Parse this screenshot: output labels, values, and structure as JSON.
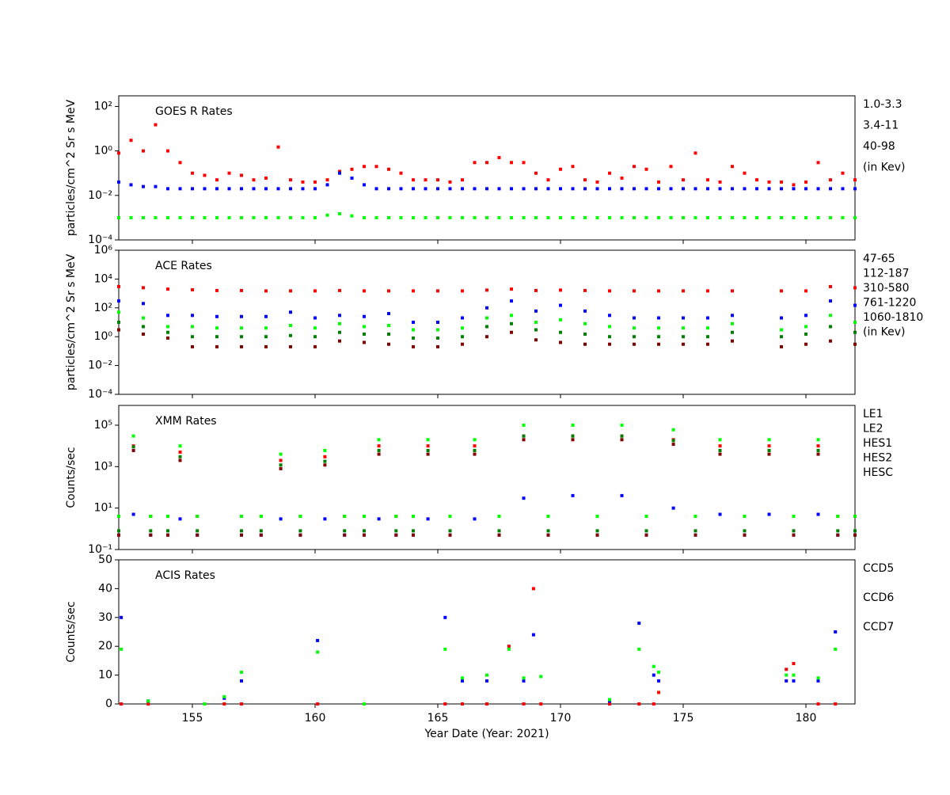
{
  "chart_data": [
    {
      "type": "scatter",
      "title": "GOES R Rates",
      "y_label": "particles/cm^2 Sr s MeV",
      "log_y": true,
      "ylim": [
        0.0001,
        300
      ],
      "xlim": [
        152,
        182
      ],
      "yticks": [
        {
          "value": 0.0001,
          "label": "10⁻⁴"
        },
        {
          "value": 0.01,
          "label": "10⁻²"
        },
        {
          "value": 1,
          "label": "10⁰"
        },
        {
          "value": 100,
          "label": "10²"
        }
      ],
      "legend_note": "(in Kev)",
      "x": [
        152,
        152.5,
        153,
        153.5,
        154,
        154.5,
        155,
        155.5,
        156,
        156.5,
        157,
        157.5,
        158,
        158.5,
        159,
        159.5,
        160,
        160.5,
        161,
        161.5,
        162,
        162.5,
        163,
        163.5,
        164,
        164.5,
        165,
        165.5,
        166,
        166.5,
        167,
        167.5,
        168,
        168.5,
        169,
        169.5,
        170,
        170.5,
        171,
        171.5,
        172,
        172.5,
        173,
        173.5,
        174,
        174.5,
        175,
        175.5,
        176,
        176.5,
        177,
        177.5,
        178,
        178.5,
        179,
        179.5,
        180,
        180.5,
        181,
        181.5,
        182
      ],
      "series": [
        {
          "name": "1.0-3.3",
          "color": "#ff0000",
          "values": [
            0.8,
            3,
            1,
            15,
            1,
            0.3,
            0.1,
            0.08,
            0.05,
            0.1,
            0.08,
            0.05,
            0.06,
            1.5,
            0.05,
            0.04,
            0.04,
            0.05,
            0.12,
            0.15,
            0.2,
            0.2,
            0.15,
            0.1,
            0.05,
            0.05,
            0.05,
            0.04,
            0.05,
            0.3,
            0.3,
            0.5,
            0.3,
            0.3,
            0.1,
            0.05,
            0.15,
            0.2,
            0.05,
            0.04,
            0.1,
            0.06,
            0.2,
            0.15,
            0.04,
            0.2,
            0.05,
            0.8,
            0.05,
            0.04,
            0.2,
            0.1,
            0.05,
            0.04,
            0.04,
            0.03,
            0.04,
            0.3,
            0.05,
            0.1,
            0.05
          ]
        },
        {
          "name": "3.4-11",
          "color": "#0000ff",
          "values": [
            0.04,
            0.03,
            0.025,
            0.025,
            0.02,
            0.02,
            0.02,
            0.02,
            0.02,
            0.02,
            0.02,
            0.02,
            0.02,
            0.02,
            0.02,
            0.02,
            0.02,
            0.03,
            0.1,
            0.06,
            0.03,
            0.02,
            0.02,
            0.02,
            0.02,
            0.02,
            0.02,
            0.02,
            0.02,
            0.02,
            0.02,
            0.02,
            0.02,
            0.02,
            0.02,
            0.02,
            0.02,
            0.02,
            0.02,
            0.02,
            0.02,
            0.02,
            0.02,
            0.02,
            0.02,
            0.02,
            0.02,
            0.02,
            0.02,
            0.02,
            0.02,
            0.02,
            0.02,
            0.02,
            0.02,
            0.02,
            0.02,
            0.02,
            0.02,
            0.02,
            0.02
          ]
        },
        {
          "name": "40-98",
          "color": "#00ff00",
          "values": [
            0.001,
            0.001,
            0.001,
            0.001,
            0.001,
            0.001,
            0.001,
            0.001,
            0.001,
            0.001,
            0.001,
            0.001,
            0.001,
            0.001,
            0.001,
            0.001,
            0.001,
            0.0013,
            0.0015,
            0.0012,
            0.001,
            0.001,
            0.001,
            0.001,
            0.001,
            0.001,
            0.001,
            0.001,
            0.001,
            0.001,
            0.001,
            0.001,
            0.001,
            0.001,
            0.001,
            0.001,
            0.001,
            0.001,
            0.001,
            0.001,
            0.001,
            0.001,
            0.001,
            0.001,
            0.001,
            0.001,
            0.001,
            0.001,
            0.001,
            0.001,
            0.001,
            0.001,
            0.001,
            0.001,
            0.001,
            0.001,
            0.001,
            0.001,
            0.001,
            0.001,
            0.001
          ]
        }
      ]
    },
    {
      "type": "scatter",
      "title": "ACE Rates",
      "y_label": "particles/cm^2 Sr s MeV",
      "log_y": true,
      "ylim": [
        0.0001,
        1000000
      ],
      "xlim": [
        152,
        182
      ],
      "yticks": [
        {
          "value": 0.0001,
          "label": "10⁻⁴"
        },
        {
          "value": 0.01,
          "label": "10⁻²"
        },
        {
          "value": 1,
          "label": "10⁰"
        },
        {
          "value": 100,
          "label": "10²"
        },
        {
          "value": 10000,
          "label": "10⁴"
        },
        {
          "value": 1000000,
          "label": "10⁶"
        }
      ],
      "legend_note": "(in Kev)",
      "x": [
        152,
        153,
        154,
        155,
        156,
        157,
        158,
        159,
        160,
        161,
        162,
        163,
        164,
        165,
        166,
        167,
        168,
        169,
        170,
        171,
        172,
        173,
        174,
        175,
        176,
        177,
        178,
        179,
        180,
        181,
        182
      ],
      "series": [
        {
          "name": "47-65",
          "color": "#ff0000",
          "values": [
            3000,
            2500,
            2000,
            1800,
            1600,
            1600,
            1500,
            1500,
            1500,
            1600,
            1500,
            1500,
            1500,
            1500,
            1500,
            1700,
            2000,
            1600,
            1700,
            1600,
            1500,
            1500,
            1500,
            1500,
            1500,
            1500,
            null,
            1500,
            1500,
            3000,
            2500
          ]
        },
        {
          "name": "112-187",
          "color": "#0000ff",
          "values": [
            300,
            200,
            30,
            30,
            25,
            25,
            25,
            50,
            20,
            30,
            25,
            40,
            10,
            10,
            20,
            100,
            300,
            60,
            150,
            60,
            30,
            20,
            20,
            20,
            20,
            30,
            null,
            20,
            30,
            300,
            150
          ]
        },
        {
          "name": "310-580",
          "color": "#00ff00",
          "values": [
            50,
            20,
            5,
            5,
            4,
            4,
            4,
            6,
            4,
            8,
            5,
            6,
            3,
            3,
            4,
            20,
            30,
            10,
            15,
            8,
            5,
            4,
            4,
            4,
            4,
            8,
            null,
            3,
            5,
            30,
            10
          ]
        },
        {
          "name": "761-1220",
          "color": "#008000",
          "values": [
            10,
            5,
            2,
            1,
            1,
            1,
            1,
            1.2,
            1,
            2,
            1.5,
            1.5,
            0.8,
            0.8,
            1,
            5,
            8,
            3,
            2,
            1.5,
            1,
            1,
            1,
            1,
            1,
            2,
            null,
            1,
            1.5,
            5,
            2
          ]
        },
        {
          "name": "1060-1810",
          "color": "#800000",
          "values": [
            3,
            1.5,
            0.8,
            0.2,
            0.2,
            0.2,
            0.2,
            0.2,
            0.2,
            0.5,
            0.4,
            0.3,
            0.2,
            0.2,
            0.3,
            1,
            2,
            0.6,
            0.4,
            0.3,
            0.3,
            0.3,
            0.3,
            0.3,
            0.3,
            0.5,
            null,
            0.2,
            0.3,
            0.5,
            0.3
          ]
        }
      ]
    },
    {
      "type": "scatter",
      "title": "XMM Rates",
      "y_label": "Counts/sec",
      "log_y": true,
      "ylim": [
        0.1,
        900000
      ],
      "xlim": [
        152,
        182
      ],
      "yticks": [
        {
          "value": 0.1,
          "label": "10⁻¹"
        },
        {
          "value": 10,
          "label": "10¹"
        },
        {
          "value": 1000,
          "label": "10³"
        },
        {
          "value": 100000,
          "label": "10⁵"
        }
      ],
      "x": [
        152,
        152.6,
        153.3,
        154,
        154.5,
        155.2,
        157,
        157.8,
        158.6,
        159.4,
        160.4,
        161.2,
        162,
        162.6,
        163.3,
        164,
        164.6,
        165.5,
        166.5,
        167.5,
        168.5,
        169.5,
        170.5,
        171.5,
        172.5,
        173.5,
        174.6,
        175.5,
        176.5,
        177.5,
        178.5,
        179.5,
        180.5,
        181.3,
        182
      ],
      "series": [
        {
          "name": "LE1",
          "color": "#ff0000",
          "values": [
            4,
            10000,
            4,
            4,
            5000,
            4,
            4,
            4,
            2000,
            4,
            3000,
            4,
            4,
            10000,
            4,
            4,
            10000,
            4,
            10000,
            4,
            30000,
            4,
            30000,
            4,
            30000,
            4,
            20000,
            4,
            10000,
            4,
            10000,
            4,
            10000,
            4,
            4
          ]
        },
        {
          "name": "LE2",
          "color": "#0000ff",
          "values": [
            0.5,
            5,
            0.5,
            0.5,
            3,
            0.5,
            0.5,
            0.5,
            3,
            0.5,
            3,
            0.5,
            0.5,
            3,
            0.5,
            0.5,
            3,
            0.5,
            3,
            0.5,
            30,
            0.5,
            40,
            0.5,
            40,
            0.5,
            10,
            0.5,
            5,
            0.5,
            5,
            0.5,
            5,
            0.5,
            0.5
          ]
        },
        {
          "name": "HES1",
          "color": "#00ff00",
          "values": [
            4,
            30000,
            4,
            4,
            10000,
            4,
            4,
            4,
            4000,
            4,
            6000,
            4,
            4,
            20000,
            4,
            4,
            20000,
            4,
            20000,
            4,
            100000,
            4,
            100000,
            4,
            100000,
            4,
            60000,
            4,
            20000,
            4,
            20000,
            4,
            20000,
            4,
            4
          ]
        },
        {
          "name": "HES2",
          "color": "#008000",
          "values": [
            0.8,
            9000,
            0.8,
            0.8,
            3000,
            0.8,
            0.8,
            0.8,
            1200,
            0.8,
            1800,
            0.8,
            0.8,
            6000,
            0.8,
            0.8,
            6000,
            0.8,
            6000,
            0.8,
            30000,
            0.8,
            30000,
            0.8,
            30000,
            0.8,
            18000,
            0.8,
            6000,
            0.8,
            6000,
            0.8,
            6000,
            0.8,
            0.8
          ]
        },
        {
          "name": "HESC",
          "color": "#800000",
          "values": [
            0.5,
            6000,
            0.5,
            0.5,
            2000,
            0.5,
            0.5,
            0.5,
            800,
            0.5,
            1200,
            0.5,
            0.5,
            4000,
            0.5,
            0.5,
            4000,
            0.5,
            4000,
            0.5,
            20000,
            0.5,
            20000,
            0.5,
            20000,
            0.5,
            12000,
            0.5,
            4000,
            0.5,
            4000,
            0.5,
            4000,
            0.5,
            0.5
          ]
        }
      ]
    },
    {
      "type": "scatter",
      "title": "ACIS Rates",
      "y_label": "Counts/sec",
      "x_label": "Year Date (Year: 2021)",
      "log_y": false,
      "ylim": [
        0,
        50
      ],
      "xlim": [
        152,
        182
      ],
      "yticks": [
        0,
        10,
        20,
        30,
        40,
        50
      ],
      "xticks": [
        155,
        160,
        165,
        170,
        175,
        180
      ],
      "x": [
        152.1,
        153.2,
        155.5,
        156.3,
        157,
        160.1,
        162,
        165.3,
        166,
        167,
        167.9,
        168.5,
        168.9,
        169.2,
        172,
        173.2,
        173.8,
        174,
        179.2,
        179.5,
        180.5,
        181.2
      ],
      "series": [
        {
          "name": "CCD5",
          "color": "#ff0000",
          "values": [
            0,
            0,
            0,
            0,
            0,
            0,
            0,
            0,
            0,
            0,
            20,
            0,
            40,
            0,
            0,
            0,
            0,
            4,
            12,
            14,
            0,
            0
          ]
        },
        {
          "name": "CCD6",
          "color": "#0000ff",
          "values": [
            30,
            1,
            0,
            2,
            8,
            22,
            0,
            30,
            8,
            8,
            null,
            8,
            24,
            null,
            1,
            28,
            10,
            8,
            8,
            8,
            8,
            25
          ]
        },
        {
          "name": "CCD7",
          "color": "#00ff00",
          "values": [
            19,
            1,
            0,
            2.5,
            11,
            18,
            0,
            19,
            9,
            10,
            19,
            9,
            null,
            9.5,
            1.5,
            19,
            13,
            11,
            10,
            10,
            9,
            19
          ]
        }
      ]
    }
  ]
}
